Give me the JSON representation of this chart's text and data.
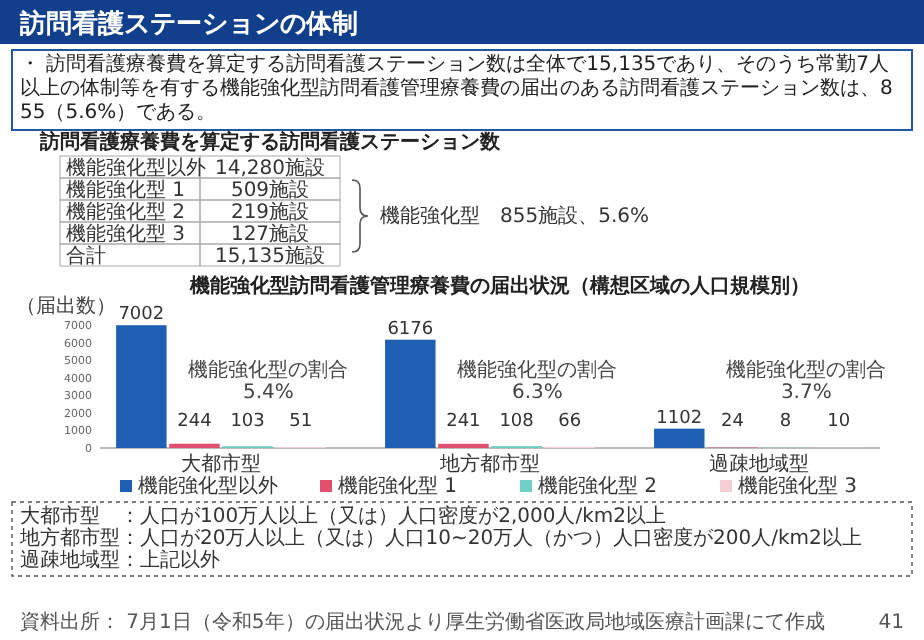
{
  "chart_data": [
    {
      "type": "other",
      "title": "訪問看護ステーションの体制",
      "annotations": [
        "・ 訪問看護療養費を算定する訪問看護ステーション数は全体で15,135であり、そのうち常勤7人以上の体制等を有する機能強化型訪問看護管理療養費の届出のある訪問看護ステーション数は、855（5.6%）である。",
        "訪問看護療養費を算定する訪問看護ステーション数",
        "機能強化型以外",
        "14,280施設",
        "機能強化型 1",
        "509施設",
        "機能強化型 2",
        "219施設",
        "機能強化型 3",
        "127施設",
        "合計",
        "15,135施設",
        "機能強化型　855施設、5.6%",
        "資料出所： 7月1日（令和5年）の届出状況より厚生労働省医政局地域医療計画課にて作成",
        "41"
      ]
    },
    {
      "type": "bar",
      "title": "機能強化型訪問看護管理療養費の届出状況（構想区域の人口規模別）",
      "ylabel": "（届出数）",
      "categories": [
        "大都市型",
        "地方都市型",
        "過疎地域型"
      ],
      "series": [
        {
          "name": "機能強化型以外",
          "color": "#1f5fb4",
          "values": [
            7002,
            6176,
            1102
          ]
        },
        {
          "name": "機能強化型 1",
          "color": "#e0506e",
          "values": [
            244,
            241,
            24
          ]
        },
        {
          "name": "機能強化型 2",
          "color": "#6fcfc4",
          "values": [
            103,
            108,
            8
          ]
        },
        {
          "name": "機能強化型 3",
          "color": "#f6cfd6",
          "values": [
            51,
            66,
            10
          ]
        }
      ],
      "ylim": [
        0,
        7300
      ],
      "yticks": [
        0,
        1000,
        2000,
        3000,
        4000,
        5000,
        6000,
        7000
      ],
      "data_labels": true,
      "legend": "bottom",
      "annotations": [
        "機能強化型の割合\n5.4%",
        "機能強化型の割合\n6.3%",
        "機能強化型の割合\n3.7%",
        "大都市型　：人口が100万人以上（又は）人口密度が2,000人/km2以上",
        "地方都市型：人口が20万人以上（又は）人口10~20万人（かつ）人口密度が200人/km2以上",
        "過疎地域型：上記以外"
      ]
    }
  ]
}
